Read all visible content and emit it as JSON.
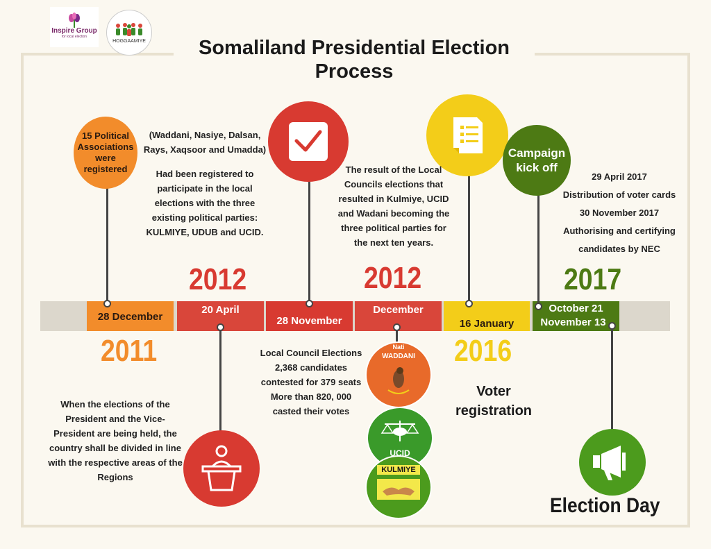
{
  "title": "Somaliland Presidential Election Process",
  "logos": {
    "inspire_name": "Inspire Group",
    "inspire_tag": "for local election",
    "hoggaamiye_name": "HOGGAAMIYE"
  },
  "timeline": {
    "segments": [
      {
        "date": "28 December",
        "color": "#f28c2b"
      },
      {
        "date": "20 April",
        "color": "#d9463a"
      },
      {
        "date": "28 November",
        "color": "#d83a31"
      },
      {
        "date": "December",
        "color": "#d9463a"
      },
      {
        "date": "16 January",
        "color": "#f3cd19"
      },
      {
        "date": "October 21",
        "date2": "November 13",
        "color": "#4d7a14"
      }
    ],
    "years": [
      "2011",
      "2012",
      "2012",
      "2016",
      "2017"
    ]
  },
  "events": {
    "associations_circle": "15 Political Associations were registered",
    "associations_text_1": "(Waddani, Nasiye, Dalsan, Rays, Xaqsoor and Umadda)",
    "associations_text_2": "Had been registered to participate in the local elections with the three existing political parties: KULMIYE, UDUB and UCID.",
    "division_text": "When the elections of the President and the Vice-President are being held, the country shall be divided in line with the respective areas of the Regions",
    "local_elections_text": "Local Council Elections 2,368 candidates contested for 379 seats More than 820, 000 casted their votes",
    "result_text": "The result of the Local Councils elections that resulted in Kulmiye, UCID and Wadani becoming the three political parties for the next ten years.",
    "voter_registration": "Voter registration",
    "campaign_circle": "Campaign kick off",
    "nec_text_1": "29 April 2017",
    "nec_text_2": "Distribution of voter cards",
    "nec_text_3": "30 November 2017",
    "nec_text_4": "Authorising and certifying candidates by NEC",
    "election_day": "Election Day"
  },
  "party_logos": {
    "waddani": "WADDANI",
    "waddani_top": "Nati",
    "ucid": "UCID",
    "kulmiye": "KULMIYE"
  },
  "colors": {
    "orange": "#f28c2b",
    "red": "#d83a31",
    "yellow": "#f3cd19",
    "green": "#4d7a14",
    "bright_green": "#4c9b1d"
  }
}
